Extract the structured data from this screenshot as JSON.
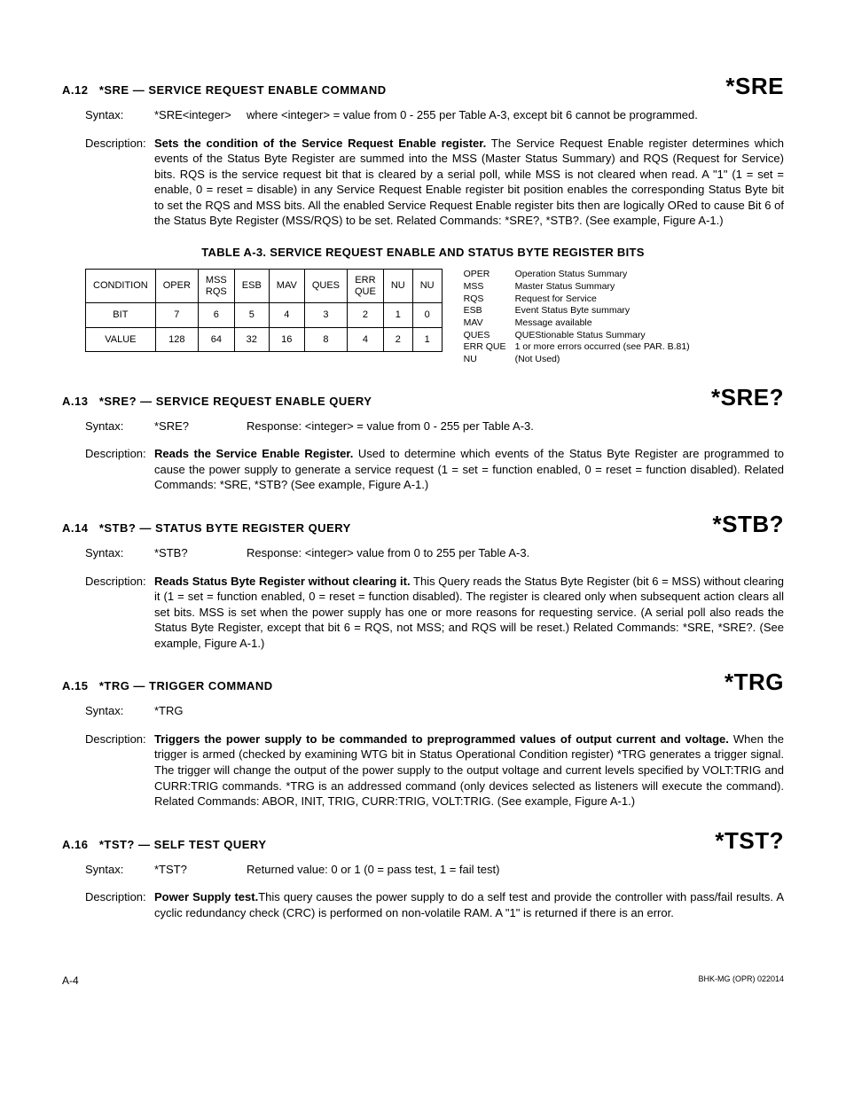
{
  "sections": {
    "a12": {
      "number": "A.12",
      "title": "*SRE — SERVICE REQUEST ENABLE COMMAND",
      "code": "*SRE",
      "syntax_label": "Syntax:",
      "syntax_cmd": "*SRE<integer>",
      "syntax_rest": "where <integer> = value from 0 - 255 per Table A-3, except bit 6 cannot be programmed.",
      "desc_label": "Description:",
      "desc_bold": "Sets the condition of the Service Request Enable register.",
      "desc_body": " The Service Request Enable register determines which events of the Status Byte Register are summed into the MSS (Master Status Summary) and RQS (Request for Service) bits. RQS is the service request bit that is cleared by a serial poll, while MSS is not cleared when read. A \"1\" (1 = set = enable, 0 = reset = disable) in any Service Request Enable register bit position enables the corresponding Status Byte bit to set the RQS and MSS bits. All the enabled Service Request Enable register bits then are logically ORed to cause Bit 6 of the Status Byte Register (MSS/RQS) to be set.   Related Commands: *SRE?, *STB?. (See example, Figure A-1.)"
    },
    "a13": {
      "number": "A.13",
      "title": "*SRE? — SERVICE REQUEST ENABLE QUERY",
      "code": "*SRE?",
      "syntax_label": "Syntax:",
      "syntax_cmd": "*SRE?",
      "syntax_rest": "Response: <integer> = value from 0 - 255 per Table A-3.",
      "desc_label": "Description:",
      "desc_bold": "Reads the Service Enable Register.",
      "desc_body": " Used to determine which events of the Status Byte Register are programmed to cause the power supply to generate a service request (1 = set = function enabled, 0 = reset = function disabled). Related Commands: *SRE, *STB? (See example, Figure A-1.)"
    },
    "a14": {
      "number": "A.14",
      "title": "*STB? — STATUS BYTE REGISTER QUERY",
      "code": "*STB?",
      "syntax_label": "Syntax:",
      "syntax_cmd": "*STB?",
      "syntax_rest": "Response: <integer> value from 0 to 255 per Table A-3.",
      "desc_label": "Description:",
      "desc_bold": "Reads Status Byte Register without clearing it.",
      "desc_body": " This Query reads the Status Byte Register (bit 6 = MSS) without clearing it (1 = set = function enabled, 0 = reset = function disabled). The register is cleared only when subsequent action clears all set bits. MSS is set when the power supply has one or more reasons for requesting service. (A serial poll also reads the Status Byte Register, except that bit 6 = RQS, not MSS; and RQS will be reset.) Related Commands: *SRE, *SRE?. (See example, Figure A-1.)"
    },
    "a15": {
      "number": "A.15",
      "title": "*TRG — TRIGGER COMMAND",
      "code": "*TRG",
      "syntax_label": "Syntax:",
      "syntax_cmd": "*TRG",
      "syntax_rest": "",
      "desc_label": "Description:",
      "desc_bold": "Triggers the power supply to be commanded to preprogrammed values of output current and voltage.",
      "desc_body": " When the trigger is armed (checked by examining WTG bit in Status Operational Condition register) *TRG generates a trigger signal. The trigger will change the output of the power supply to the output voltage and current levels specified by VOLT:TRIG and CURR:TRIG commands. *TRG is an addressed command (only devices selected as listeners will execute the command). Related Commands: ABOR, INIT, TRIG, CURR:TRIG, VOLT:TRIG. (See example, Figure A-1.)"
    },
    "a16": {
      "number": "A.16",
      "title": "*TST? — SELF TEST QUERY",
      "code": "*TST?",
      "syntax_label": "Syntax:",
      "syntax_cmd": "*TST?",
      "syntax_rest": "Returned value: 0 or 1 (0 = pass test, 1 = fail test)",
      "desc_label": "Description:",
      "desc_bold": "Power Supply test.",
      "desc_body": "This query causes the power supply to do a self test and provide the controller with pass/fail results. A cyclic redundancy check (CRC) is performed on non-volatile RAM. A \"1\" is returned if there is an error."
    }
  },
  "table": {
    "caption": "TABLE A-3.  SERVICE REQUEST ENABLE AND STATUS BYTE REGISTER BITS",
    "headers": {
      "condition": "CONDITION",
      "oper": "OPER",
      "mss": "MSS",
      "rqs": "RQS",
      "esb": "ESB",
      "mav": "MAV",
      "ques": "QUES",
      "err": "ERR",
      "que": "QUE",
      "nu1": "NU",
      "nu2": "NU"
    },
    "bit_label": "BIT",
    "bits": [
      "7",
      "6",
      "5",
      "4",
      "3",
      "2",
      "1",
      "0"
    ],
    "value_label": "VALUE",
    "values": [
      "128",
      "64",
      "32",
      "16",
      "8",
      "4",
      "2",
      "1"
    ]
  },
  "legend": [
    {
      "abbr": "OPER",
      "def": "Operation Status Summary"
    },
    {
      "abbr": "MSS",
      "def": "Master Status Summary"
    },
    {
      "abbr": "RQS",
      "def": "Request for Service"
    },
    {
      "abbr": "ESB",
      "def": "Event Status Byte summary"
    },
    {
      "abbr": "MAV",
      "def": "Message available"
    },
    {
      "abbr": "QUES",
      "def": "QUEStionable Status Summary"
    },
    {
      "abbr": "ERR QUE",
      "def": "1 or more errors occurred (see PAR. B.81)"
    },
    {
      "abbr": "NU",
      "def": "(Not Used)"
    }
  ],
  "footer": {
    "left": "A-4",
    "right": "BHK-MG (OPR) 022014"
  }
}
